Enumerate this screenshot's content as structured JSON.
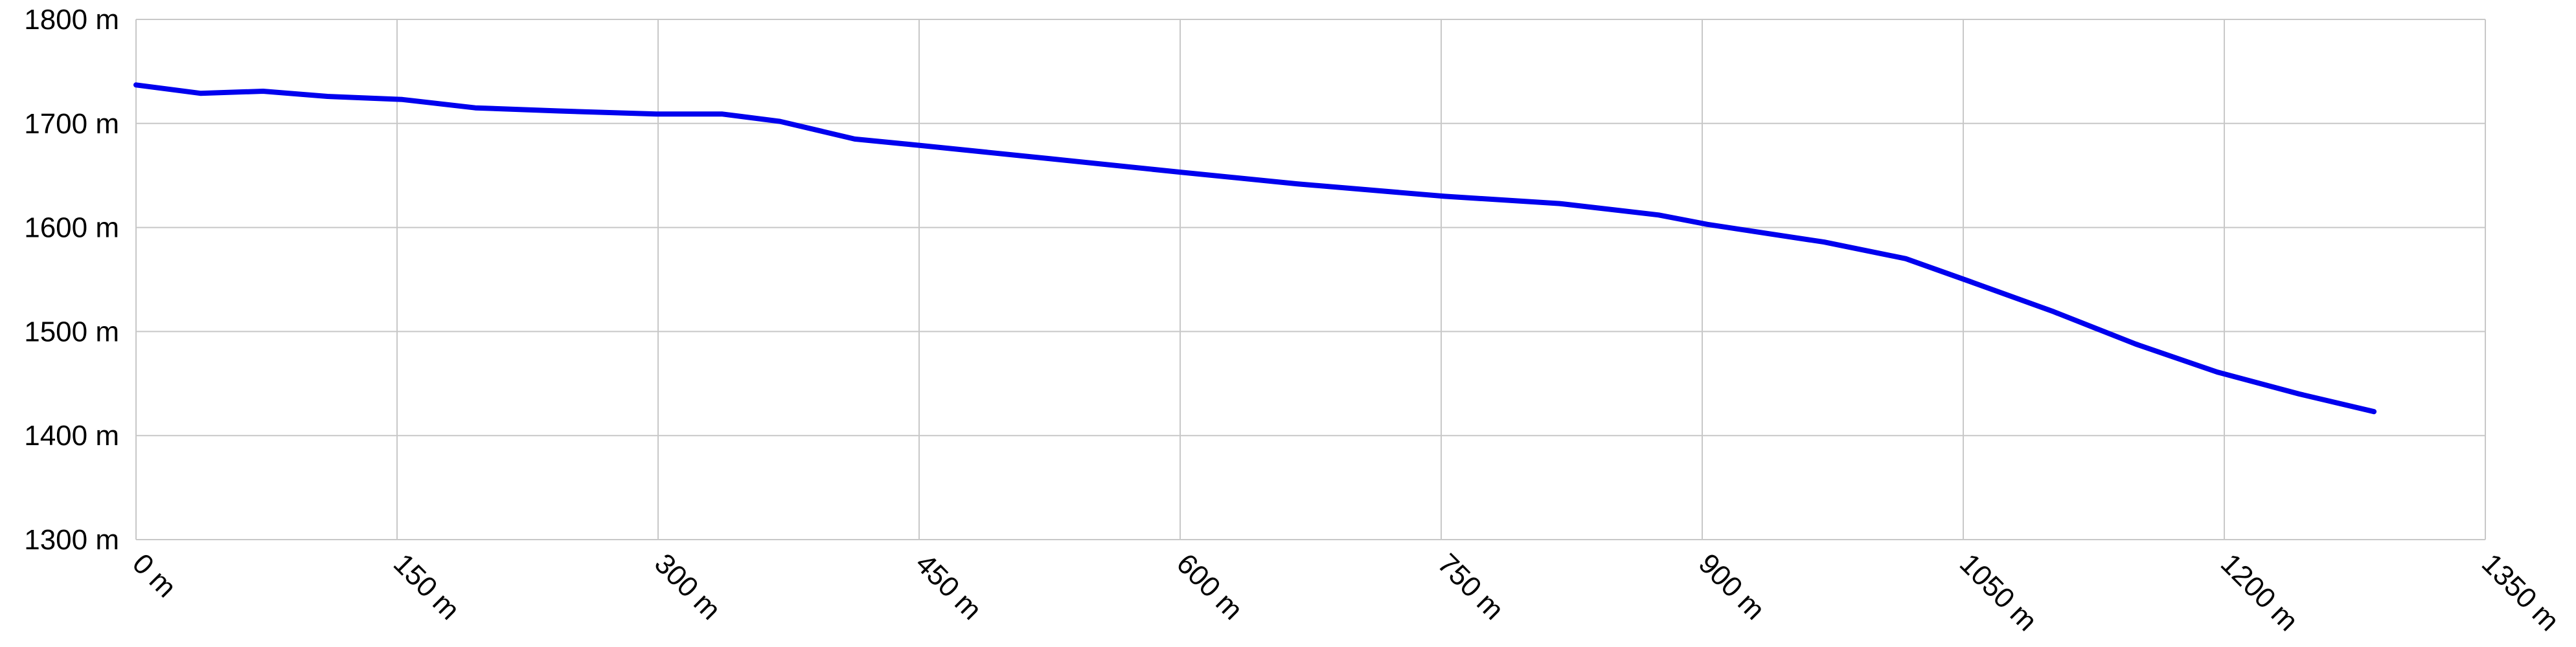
{
  "chart_data": {
    "type": "line",
    "x": [
      0,
      37,
      73,
      110,
      153,
      195,
      243,
      299,
      337,
      370,
      413,
      450,
      526,
      601,
      667,
      752,
      818,
      875,
      903,
      970,
      1017,
      1054,
      1102,
      1149,
      1196,
      1243,
      1286
    ],
    "series": [
      {
        "color": "#0000ee",
        "values": [
          1737,
          1729,
          1731,
          1726,
          1723,
          1715,
          1712,
          1709,
          1709,
          1702,
          1685,
          1679,
          1666,
          1653,
          1642,
          1630,
          1623,
          1612,
          1603,
          1586,
          1570,
          1548,
          1519,
          1488,
          1461,
          1440,
          1423
        ]
      }
    ],
    "xlim": [
      0,
      1350
    ],
    "xticks": [
      {
        "value": 0,
        "label": "0 m"
      },
      {
        "value": 150,
        "label": "150 m"
      },
      {
        "value": 300,
        "label": "300 m"
      },
      {
        "value": 450,
        "label": "450 m"
      },
      {
        "value": 600,
        "label": "600 m"
      },
      {
        "value": 750,
        "label": "750 m"
      },
      {
        "value": 900,
        "label": "900 m"
      },
      {
        "value": 1050,
        "label": "1050 m"
      },
      {
        "value": 1200,
        "label": "1200 m"
      },
      {
        "value": 1350,
        "label": "1350 m"
      }
    ],
    "ylim": [
      1300,
      1800
    ],
    "yticks": [
      {
        "value": 1300,
        "label": "1300 m"
      },
      {
        "value": 1400,
        "label": "1400 m"
      },
      {
        "value": 1500,
        "label": "1500 m"
      },
      {
        "value": 1600,
        "label": "1600 m"
      },
      {
        "value": 1700,
        "label": "1700 m"
      },
      {
        "value": 1800,
        "label": "1800 m"
      }
    ],
    "grid": true
  }
}
